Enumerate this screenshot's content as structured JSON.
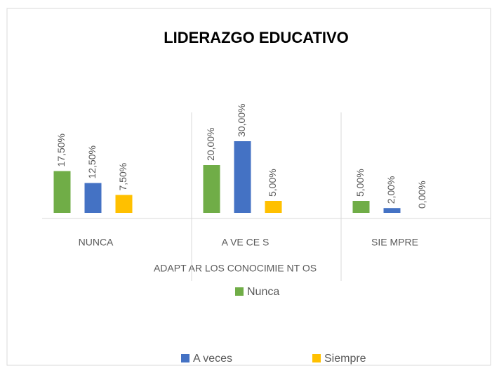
{
  "chart_data": {
    "type": "bar",
    "title": "LIDERAZGO EDUCATIVO",
    "x_label": "ADAPT AR LOS CONOCIMIE NT OS",
    "categories": [
      "NUNCA",
      "A VE CE S",
      "SIE MPRE"
    ],
    "series": [
      {
        "name": "Nunca",
        "color": "#70ad47",
        "values": [
          17.5,
          20,
          5
        ],
        "value_labels": [
          "17,50%",
          "20,00%",
          "5,00%"
        ]
      },
      {
        "name": "A veces",
        "color": "#4472c4",
        "values": [
          12.5,
          30,
          2
        ],
        "value_labels": [
          "12,50%",
          "30,00%",
          "2,00%"
        ]
      },
      {
        "name": "Siempre",
        "color": "#ffc000",
        "values": [
          7.5,
          5,
          0
        ],
        "value_labels": [
          "7,50%",
          "5,00%",
          "0,00%"
        ]
      }
    ]
  }
}
